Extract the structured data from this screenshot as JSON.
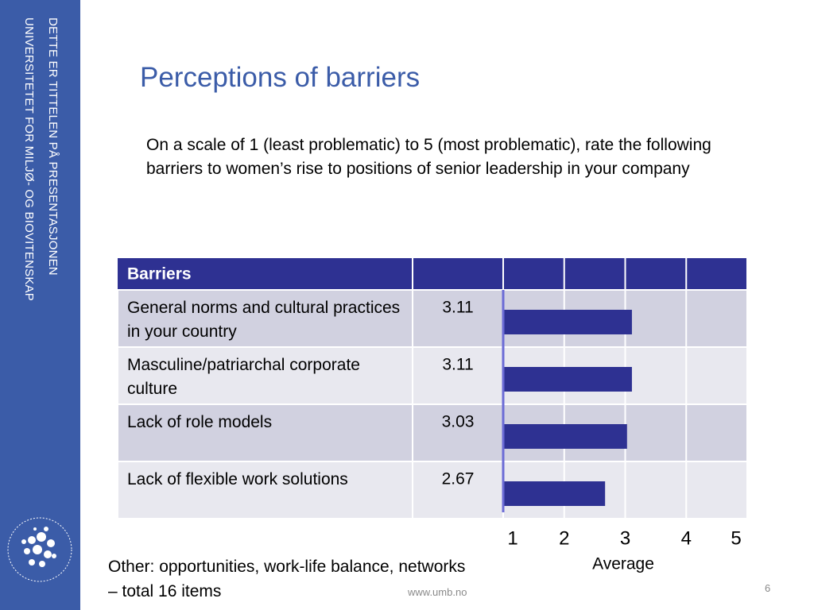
{
  "sidebar": {
    "line1": "DETTE ER TITTELEN PÅ PRESENTASJONEN",
    "line2": "UNIVERSITETET FOR MILJØ- OG BIOVITENSKAP"
  },
  "title": "Perceptions of barriers",
  "question": "On a scale of 1 (least problematic) to 5 (most problematic), rate the following barriers to women’s rise to positions of senior leadership in your company",
  "chart_data": {
    "type": "bar",
    "orientation": "horizontal",
    "header": "Barriers",
    "categories": [
      "General norms and cultural practices in your country",
      "Masculine/patriarchal corporate culture",
      "Lack of role models",
      "Lack of flexible work solutions"
    ],
    "values": [
      3.11,
      3.11,
      3.03,
      2.67
    ],
    "color": "#2e3192",
    "xlim": [
      1,
      5
    ],
    "xticks": [
      1,
      2,
      3,
      4,
      5
    ],
    "xlabel": "Average",
    "grid": true
  },
  "note": "Other: opportunities, work-life balance, networks – total 16 items",
  "footer": {
    "url": "www.umb.no",
    "page": 6
  }
}
